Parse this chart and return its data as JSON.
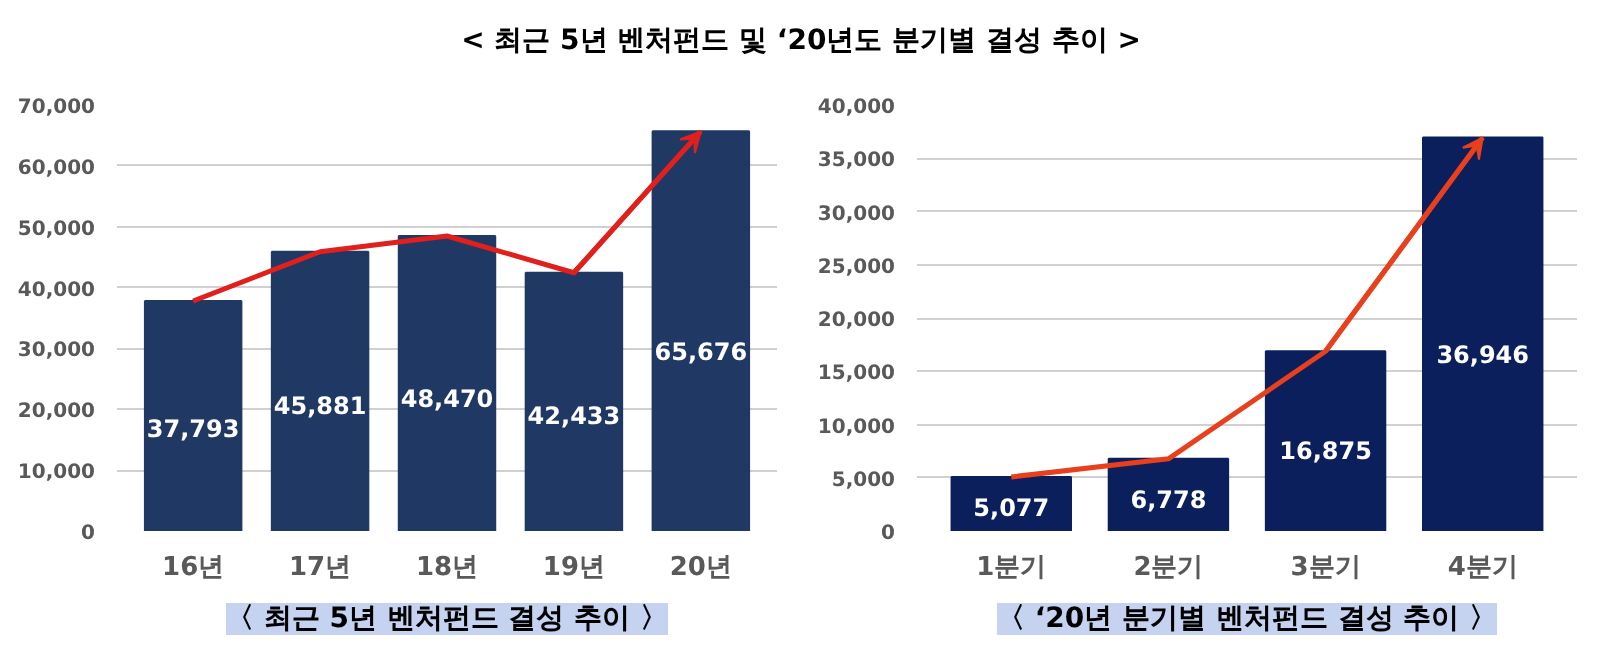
{
  "chart_data": [
    {
      "type": "bar",
      "title": "< 최근 5년 벤처펀드 및 ‘20년도 분기별 결성 추이 >",
      "xlabel": "〈 최근 5년 벤처펀드 결성 추이 〉",
      "categories": [
        "16년",
        "17년",
        "18년",
        "19년",
        "20년"
      ],
      "series": [
        {
          "color": "#203864",
          "values": [
            37793,
            45881,
            48470,
            42433,
            65676
          ],
          "value_labels": [
            "37,793",
            "45,881",
            "48,470",
            "42,433",
            "65,676"
          ]
        }
      ],
      "ylim": [
        0,
        70000
      ],
      "yticks": [
        {
          "value": 0,
          "label": "0"
        },
        {
          "value": 10000,
          "label": "10,000"
        },
        {
          "value": 20000,
          "label": "20,000"
        },
        {
          "value": 30000,
          "label": "30,000"
        },
        {
          "value": 40000,
          "label": "40,000"
        },
        {
          "value": 50000,
          "label": "50,000"
        },
        {
          "value": 60000,
          "label": "60,000"
        },
        {
          "value": 70000,
          "label": "70,000"
        }
      ],
      "grid": "y"
    },
    {
      "type": "bar",
      "xlabel": "〈 ‘20년 분기별 벤처펀드 결성 추이 〉",
      "categories": [
        "1분기",
        "2분기",
        "3분기",
        "4분기"
      ],
      "series": [
        {
          "color": "#0b1f5c",
          "values": [
            5077,
            6778,
            16875,
            36946
          ],
          "value_labels": [
            "5,077",
            "6,778",
            "16,875",
            "36,946"
          ]
        }
      ],
      "ylim": [
        0,
        40000
      ],
      "yticks": [
        {
          "value": 0,
          "label": "0"
        },
        {
          "value": 5000,
          "label": "5,000"
        },
        {
          "value": 10000,
          "label": "10,000"
        },
        {
          "value": 15000,
          "label": "15,000"
        },
        {
          "value": 20000,
          "label": "20,000"
        },
        {
          "value": 25000,
          "label": "25,000"
        },
        {
          "value": 30000,
          "label": "30,000"
        },
        {
          "value": 35000,
          "label": "35,000"
        },
        {
          "value": 40000,
          "label": "40,000"
        }
      ],
      "grid": "y"
    }
  ]
}
